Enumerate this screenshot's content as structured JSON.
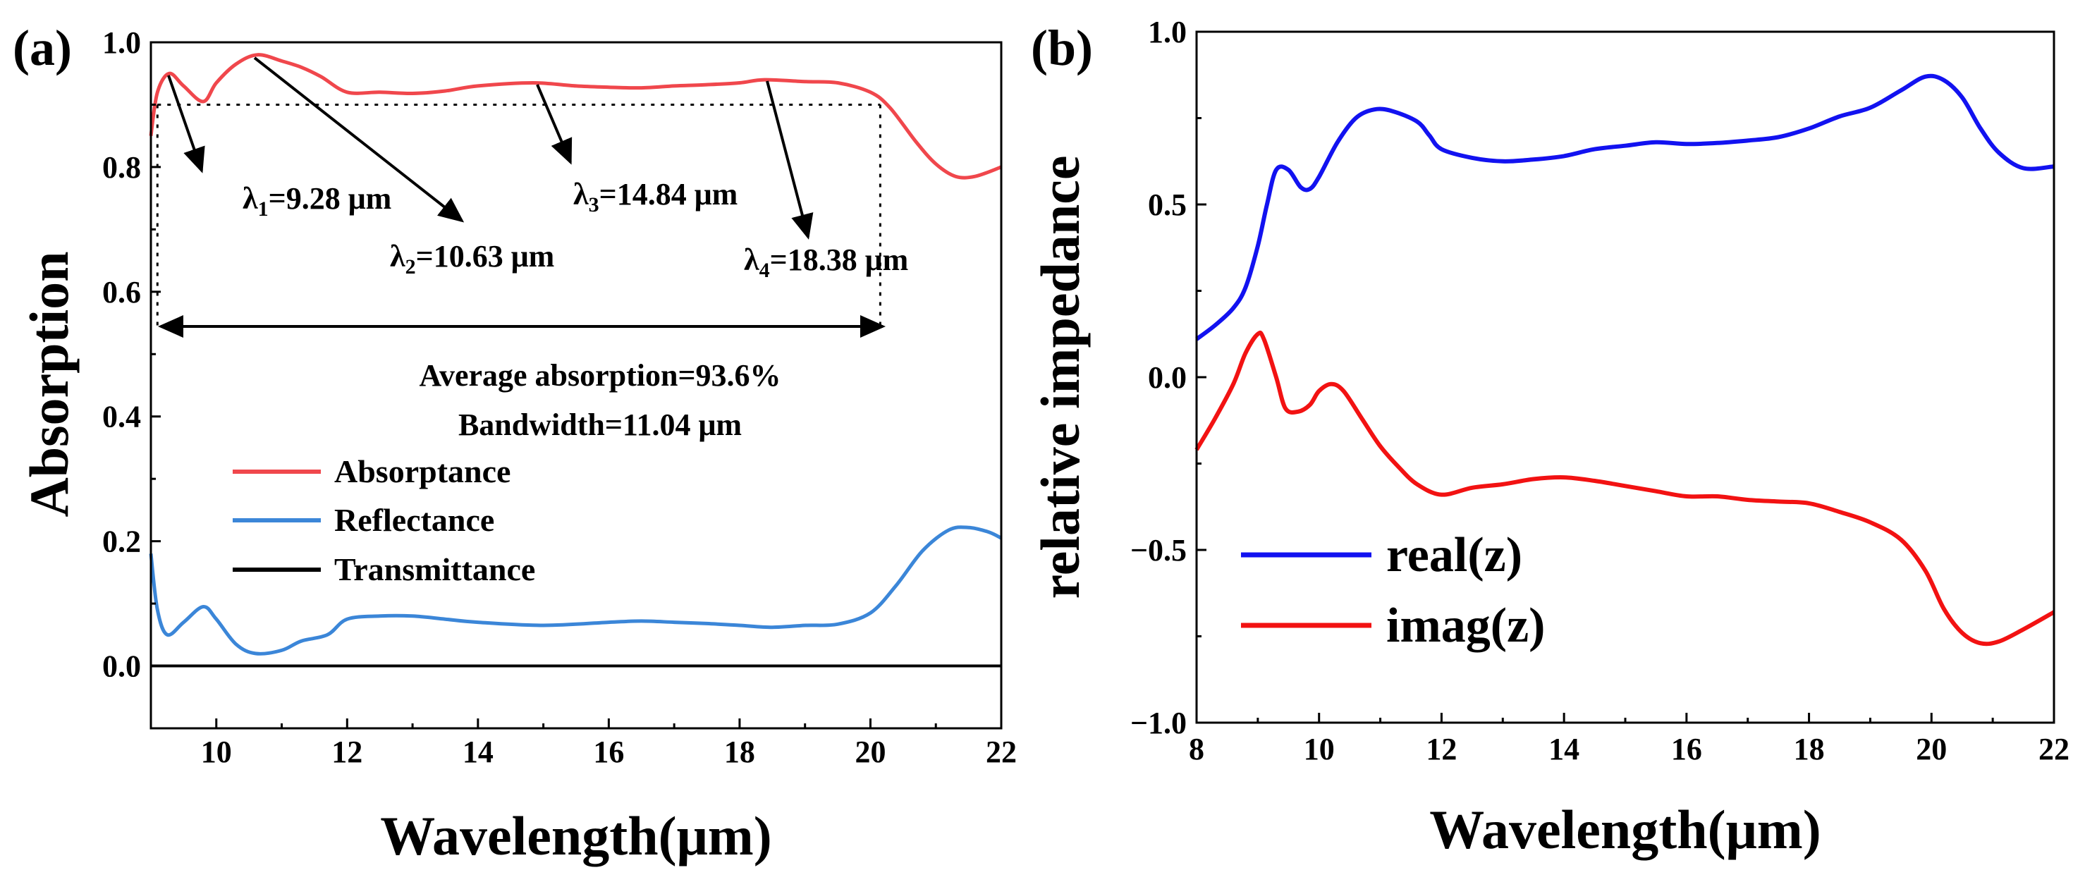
{
  "panel_a_label": "(a)",
  "panel_b_label": "(b)",
  "colors": {
    "absorptance": "#f0474c",
    "reflectance": "#3b86d8",
    "transmittance": "#000000",
    "real": "#1212f0",
    "imag": "#f21212"
  },
  "chart_data": [
    {
      "type": "line",
      "title": "",
      "xlabel": "Wavelength(μm)",
      "ylabel": "Absorption",
      "xlim": [
        9,
        22
      ],
      "ylim": [
        -0.1,
        1.0
      ],
      "xticks": [
        "10",
        "12",
        "14",
        "16",
        "18",
        "20",
        "22"
      ],
      "yticks": [
        "0.0",
        "0.2",
        "0.4",
        "0.6",
        "0.8",
        "1.0"
      ],
      "legend": [
        "Absorptance",
        "Reflectance",
        "Transmittance"
      ],
      "threshold": 0.9,
      "series": [
        {
          "name": "Absorptance",
          "points": [
            [
              9.0,
              0.85
            ],
            [
              9.1,
              0.92
            ],
            [
              9.28,
              0.95
            ],
            [
              9.5,
              0.93
            ],
            [
              9.8,
              0.905
            ],
            [
              10.0,
              0.935
            ],
            [
              10.3,
              0.965
            ],
            [
              10.63,
              0.98
            ],
            [
              11.0,
              0.97
            ],
            [
              11.3,
              0.96
            ],
            [
              11.6,
              0.945
            ],
            [
              12.0,
              0.92
            ],
            [
              12.5,
              0.92
            ],
            [
              13.0,
              0.918
            ],
            [
              13.5,
              0.922
            ],
            [
              14.0,
              0.93
            ],
            [
              14.84,
              0.935
            ],
            [
              15.5,
              0.93
            ],
            [
              16.0,
              0.928
            ],
            [
              16.5,
              0.927
            ],
            [
              17.0,
              0.93
            ],
            [
              17.5,
              0.932
            ],
            [
              18.0,
              0.935
            ],
            [
              18.38,
              0.94
            ],
            [
              19.0,
              0.937
            ],
            [
              19.5,
              0.935
            ],
            [
              20.0,
              0.92
            ],
            [
              20.3,
              0.895
            ],
            [
              20.7,
              0.84
            ],
            [
              21.0,
              0.805
            ],
            [
              21.3,
              0.785
            ],
            [
              21.6,
              0.785
            ],
            [
              22.0,
              0.8
            ]
          ]
        },
        {
          "name": "Reflectance",
          "points": [
            [
              9.0,
              0.18
            ],
            [
              9.1,
              0.09
            ],
            [
              9.25,
              0.05
            ],
            [
              9.5,
              0.07
            ],
            [
              9.8,
              0.095
            ],
            [
              10.0,
              0.075
            ],
            [
              10.3,
              0.035
            ],
            [
              10.6,
              0.02
            ],
            [
              11.0,
              0.025
            ],
            [
              11.3,
              0.04
            ],
            [
              11.7,
              0.05
            ],
            [
              12.0,
              0.075
            ],
            [
              12.5,
              0.08
            ],
            [
              13.0,
              0.08
            ],
            [
              13.5,
              0.075
            ],
            [
              14.0,
              0.07
            ],
            [
              15.0,
              0.065
            ],
            [
              16.0,
              0.07
            ],
            [
              16.5,
              0.072
            ],
            [
              17.0,
              0.07
            ],
            [
              17.5,
              0.068
            ],
            [
              18.0,
              0.065
            ],
            [
              18.5,
              0.062
            ],
            [
              19.0,
              0.065
            ],
            [
              19.5,
              0.067
            ],
            [
              20.0,
              0.085
            ],
            [
              20.4,
              0.13
            ],
            [
              20.8,
              0.185
            ],
            [
              21.2,
              0.218
            ],
            [
              21.5,
              0.222
            ],
            [
              21.8,
              0.215
            ],
            [
              22.0,
              0.205
            ]
          ]
        },
        {
          "name": "Transmittance",
          "points": [
            [
              9.0,
              0.0
            ],
            [
              22.0,
              0.0
            ]
          ]
        }
      ],
      "annotations": {
        "l1": {
          "sym": "λ",
          "sub": "1",
          "val": "=9.28 μm"
        },
        "l2": {
          "sym": "λ",
          "sub": "2",
          "val": "=10.63 μm"
        },
        "l3": {
          "sym": "λ",
          "sub": "3",
          "val": "=14.84 μm"
        },
        "l4": {
          "sym": "λ",
          "sub": "4",
          "val": "=18.38 μm"
        },
        "avg": "Average absorption=93.6%",
        "bw": "Bandwidth=11.04 μm"
      }
    },
    {
      "type": "line",
      "title": "",
      "xlabel": "Wavelength(μm)",
      "ylabel": "relative impedance",
      "xlim": [
        8,
        22
      ],
      "ylim": [
        -1.0,
        1.0
      ],
      "xticks": [
        "8",
        "10",
        "12",
        "14",
        "16",
        "18",
        "20",
        "22"
      ],
      "yticks": [
        "−1.0",
        "−0.5",
        "0.0",
        "0.5",
        "1.0"
      ],
      "legend": [
        "real(z)",
        "imag(z)"
      ],
      "series": [
        {
          "name": "real(z)",
          "points": [
            [
              8.0,
              0.11
            ],
            [
              8.3,
              0.15
            ],
            [
              8.6,
              0.2
            ],
            [
              8.8,
              0.26
            ],
            [
              9.0,
              0.38
            ],
            [
              9.15,
              0.5
            ],
            [
              9.3,
              0.6
            ],
            [
              9.5,
              0.6
            ],
            [
              9.7,
              0.55
            ],
            [
              9.85,
              0.545
            ],
            [
              10.0,
              0.58
            ],
            [
              10.3,
              0.68
            ],
            [
              10.6,
              0.75
            ],
            [
              10.9,
              0.775
            ],
            [
              11.2,
              0.77
            ],
            [
              11.6,
              0.74
            ],
            [
              11.8,
              0.7
            ],
            [
              12.0,
              0.66
            ],
            [
              12.5,
              0.635
            ],
            [
              13.0,
              0.625
            ],
            [
              13.5,
              0.63
            ],
            [
              14.0,
              0.64
            ],
            [
              14.5,
              0.66
            ],
            [
              15.0,
              0.67
            ],
            [
              15.5,
              0.68
            ],
            [
              16.0,
              0.675
            ],
            [
              16.5,
              0.678
            ],
            [
              17.0,
              0.685
            ],
            [
              17.5,
              0.695
            ],
            [
              18.0,
              0.72
            ],
            [
              18.5,
              0.755
            ],
            [
              19.0,
              0.78
            ],
            [
              19.5,
              0.83
            ],
            [
              19.9,
              0.87
            ],
            [
              20.2,
              0.86
            ],
            [
              20.5,
              0.81
            ],
            [
              20.8,
              0.72
            ],
            [
              21.1,
              0.65
            ],
            [
              21.5,
              0.605
            ],
            [
              22.0,
              0.61
            ]
          ]
        },
        {
          "name": "imag(z)",
          "points": [
            [
              8.0,
              -0.21
            ],
            [
              8.3,
              -0.12
            ],
            [
              8.6,
              -0.02
            ],
            [
              8.8,
              0.07
            ],
            [
              9.0,
              0.125
            ],
            [
              9.1,
              0.11
            ],
            [
              9.3,
              0.0
            ],
            [
              9.45,
              -0.09
            ],
            [
              9.65,
              -0.1
            ],
            [
              9.85,
              -0.08
            ],
            [
              10.0,
              -0.04
            ],
            [
              10.2,
              -0.02
            ],
            [
              10.4,
              -0.04
            ],
            [
              10.7,
              -0.12
            ],
            [
              11.0,
              -0.2
            ],
            [
              11.3,
              -0.26
            ],
            [
              11.6,
              -0.31
            ],
            [
              12.0,
              -0.34
            ],
            [
              12.5,
              -0.32
            ],
            [
              13.0,
              -0.31
            ],
            [
              13.5,
              -0.295
            ],
            [
              14.0,
              -0.29
            ],
            [
              14.5,
              -0.3
            ],
            [
              15.0,
              -0.315
            ],
            [
              15.5,
              -0.33
            ],
            [
              16.0,
              -0.345
            ],
            [
              16.5,
              -0.345
            ],
            [
              17.0,
              -0.355
            ],
            [
              17.5,
              -0.36
            ],
            [
              18.0,
              -0.365
            ],
            [
              18.5,
              -0.39
            ],
            [
              19.0,
              -0.42
            ],
            [
              19.5,
              -0.47
            ],
            [
              19.9,
              -0.56
            ],
            [
              20.2,
              -0.67
            ],
            [
              20.5,
              -0.74
            ],
            [
              20.8,
              -0.77
            ],
            [
              21.1,
              -0.765
            ],
            [
              21.5,
              -0.73
            ],
            [
              22.0,
              -0.68
            ]
          ]
        }
      ]
    }
  ]
}
